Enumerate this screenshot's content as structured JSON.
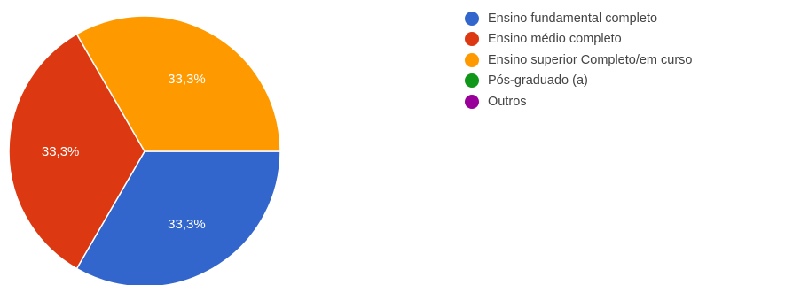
{
  "chart_data": {
    "type": "pie",
    "title": "",
    "slices": [
      {
        "label": "Ensino fundamental completo",
        "value": 33.3,
        "display": "33,3%",
        "color": "#3366CC"
      },
      {
        "label": "Ensino médio completo",
        "value": 33.3,
        "display": "33,3%",
        "color": "#DC3912"
      },
      {
        "label": "Ensino superior Completo/em curso",
        "value": 33.3,
        "display": "33,3%",
        "color": "#FF9900"
      },
      {
        "label": "Pós-graduado (a)",
        "value": 0,
        "display": "",
        "color": "#109618"
      },
      {
        "label": "Outros",
        "value": 0,
        "display": "",
        "color": "#990099"
      }
    ],
    "legend_position": "right"
  }
}
